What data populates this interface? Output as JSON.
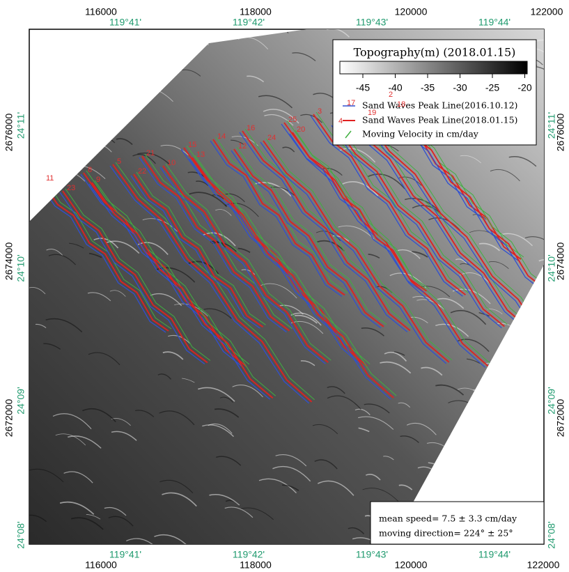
{
  "map": {
    "x_ticks": [
      "116000",
      "118000",
      "120000",
      "122000"
    ],
    "y_ticks": [
      "2676000",
      "2674000",
      "2672000"
    ],
    "lon_ticks": [
      "119°41'",
      "119°42'",
      "119°43'",
      "119°44'"
    ],
    "lat_ticks": [
      "24°11'",
      "24°10'",
      "24°09'",
      "24°08'"
    ],
    "legend": {
      "title": "Topography(m) (2018.01.15)",
      "colorbar_ticks": [
        "-45",
        "-40",
        "-35",
        "-30",
        "-25",
        "-20"
      ],
      "entries": [
        "Sand Waves Peak Line(2016.10.12)",
        "Sand Waves Peak Line(2018.01.15)",
        "Moving Velocity in cm/day"
      ]
    },
    "stats": [
      "mean speed= 7.5 ± 3.3 cm/day",
      "moving direction= 224° ± 25°"
    ],
    "wave_labels": [
      "11",
      "23",
      "8",
      "9",
      "5",
      "22",
      "21",
      "10",
      "15",
      "13",
      "14",
      "12",
      "16",
      "24",
      "25",
      "20",
      "3",
      "4",
      "17",
      "19",
      "2",
      "18"
    ]
  }
}
